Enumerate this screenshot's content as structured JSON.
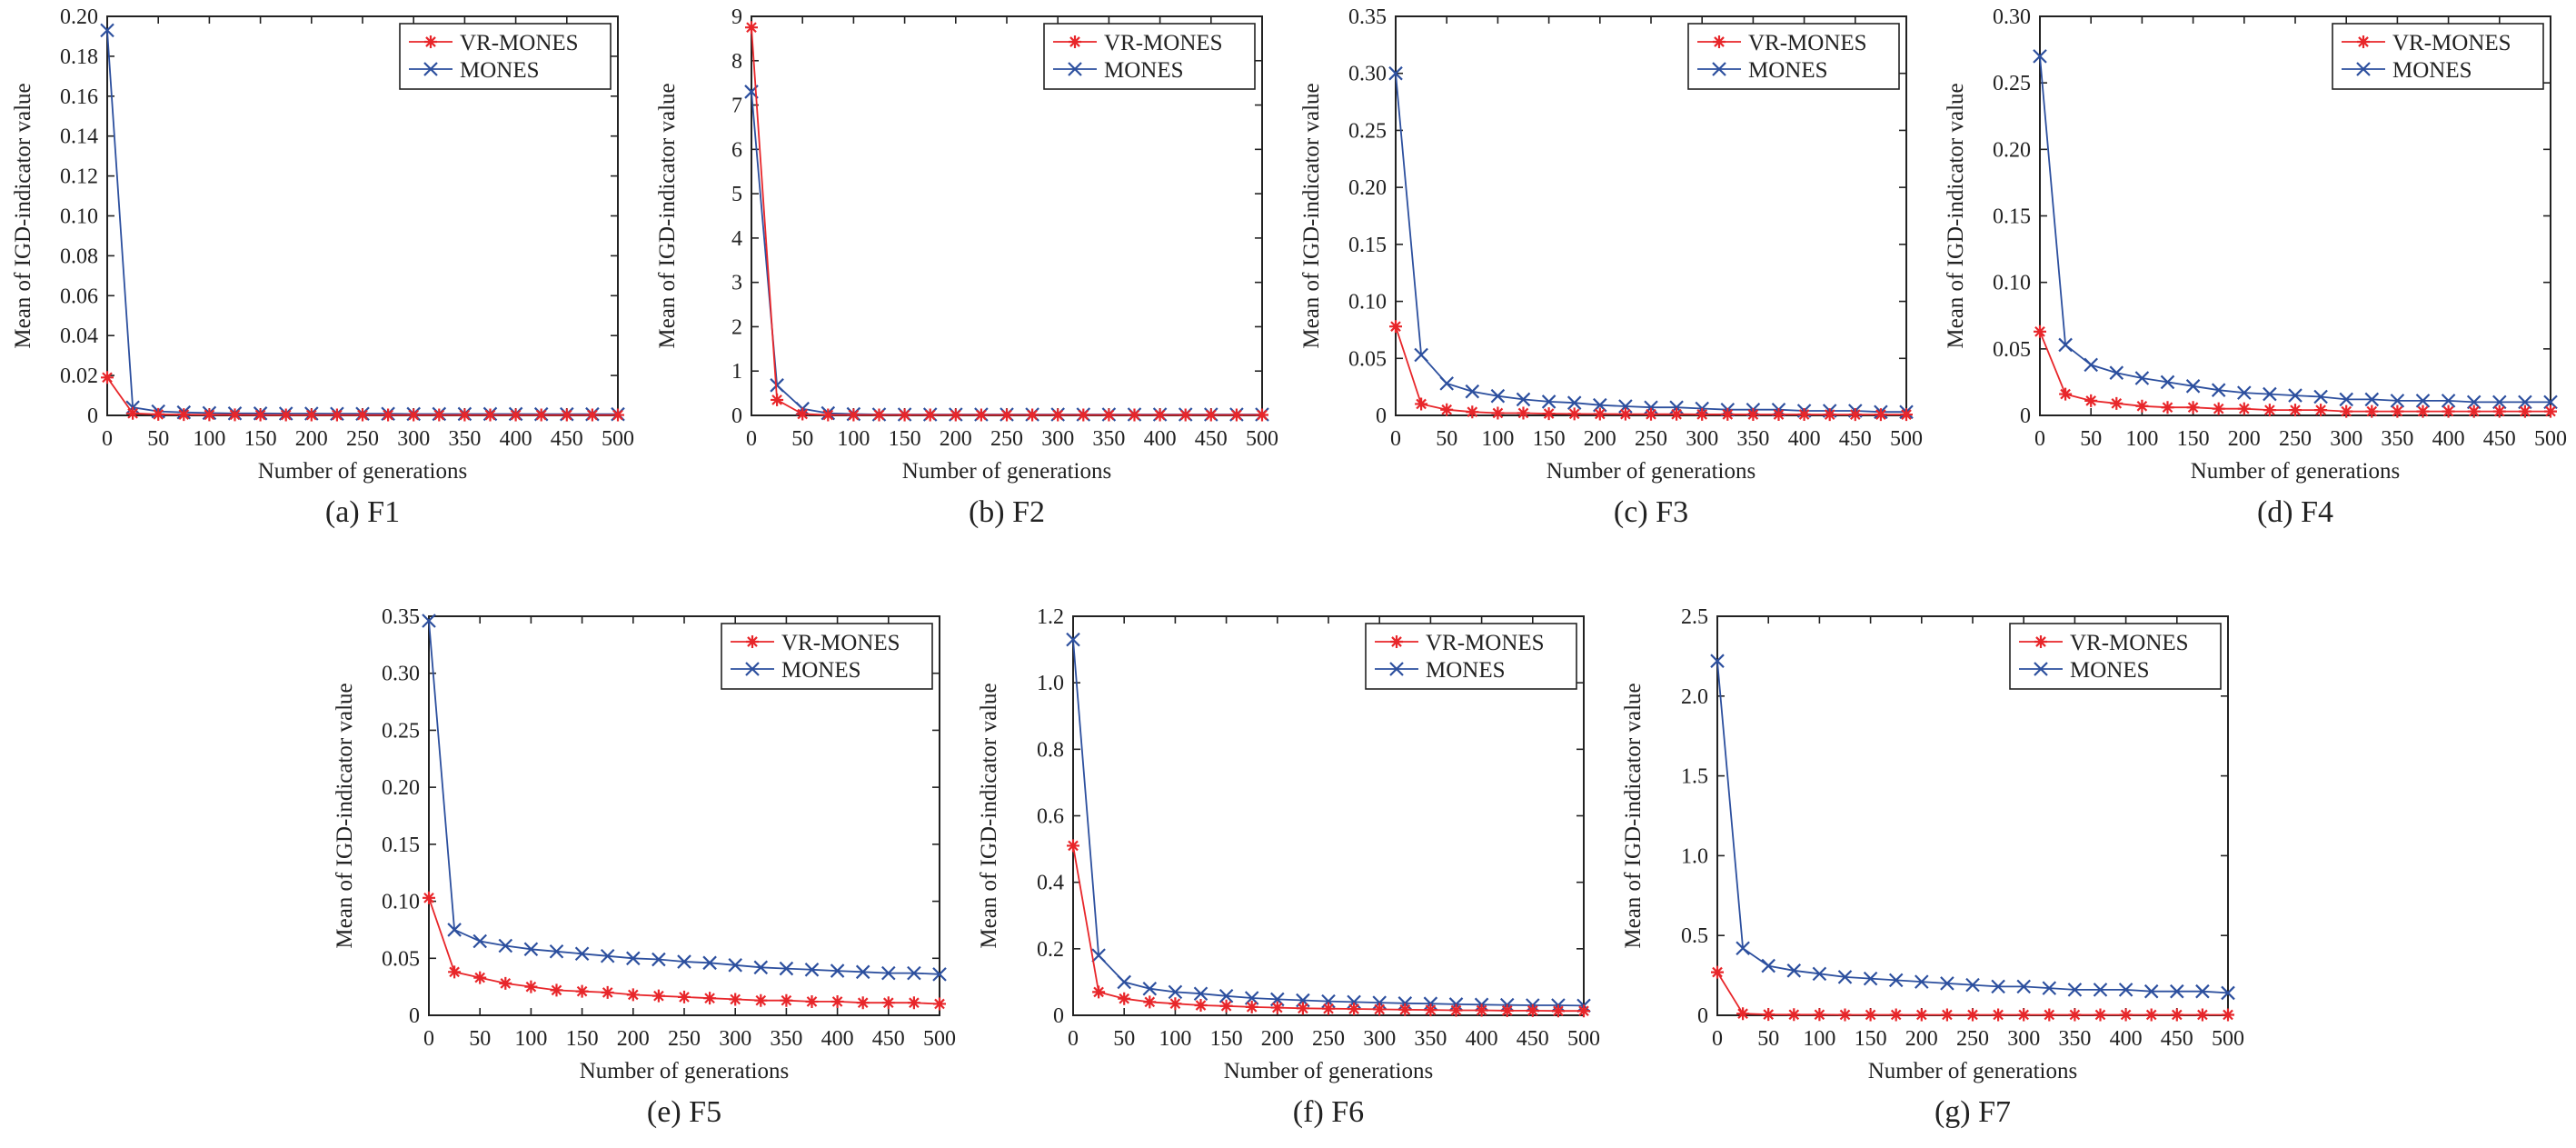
{
  "colors": {
    "vr_mones": "#e8262a",
    "mones": "#2c4f9e",
    "axis": "#222222"
  },
  "chart_data": [
    {
      "type": "line",
      "caption": "(a) F1",
      "xlabel": "Number of generations",
      "ylabel": "Mean of IGD-indicator value",
      "xlim": [
        0,
        500
      ],
      "ylim": [
        0,
        0.2
      ],
      "xticks": [
        0,
        50,
        100,
        150,
        200,
        250,
        300,
        350,
        400,
        450,
        500
      ],
      "yticks": [
        0,
        0.02,
        0.04,
        0.06,
        0.08,
        0.1,
        0.12,
        0.14,
        0.16,
        0.18,
        0.2
      ],
      "ytick_labels": [
        "0",
        "0.02",
        "0.04",
        "0.06",
        "0.08",
        "0.10",
        "0.12",
        "0.14",
        "0.16",
        "0.18",
        "0.20"
      ],
      "legend_position": "top-right",
      "x": [
        0,
        25,
        50,
        75,
        100,
        125,
        150,
        175,
        200,
        225,
        250,
        275,
        300,
        325,
        350,
        375,
        400,
        425,
        450,
        475,
        500
      ],
      "series": [
        {
          "name": "VR-MONES",
          "marker": "star",
          "values": [
            0.019,
            0.001,
            0.0005,
            0.0004,
            0.0003,
            0.0003,
            0.0002,
            0.0002,
            0.0002,
            0.0002,
            0.0002,
            0.0002,
            0.0002,
            0.0002,
            0.0002,
            0.0002,
            0.0002,
            0.0002,
            0.0002,
            0.0002,
            0.0002
          ]
        },
        {
          "name": "MONES",
          "marker": "x",
          "values": [
            0.193,
            0.004,
            0.002,
            0.0015,
            0.0012,
            0.001,
            0.001,
            0.0009,
            0.0009,
            0.0008,
            0.0008,
            0.0008,
            0.0007,
            0.0007,
            0.0007,
            0.0007,
            0.0007,
            0.0006,
            0.0006,
            0.0006,
            0.0006
          ]
        }
      ]
    },
    {
      "type": "line",
      "caption": "(b) F2",
      "xlabel": "Number of generations",
      "ylabel": "Mean of IGD-indicator value",
      "xlim": [
        0,
        500
      ],
      "ylim": [
        0,
        9
      ],
      "xticks": [
        0,
        50,
        100,
        150,
        200,
        250,
        300,
        350,
        400,
        450,
        500
      ],
      "yticks": [
        0,
        1,
        2,
        3,
        4,
        5,
        6,
        7,
        8,
        9
      ],
      "ytick_labels": [
        "0",
        "1",
        "2",
        "3",
        "4",
        "5",
        "6",
        "7",
        "8",
        "9"
      ],
      "legend_position": "top-right",
      "x": [
        0,
        25,
        50,
        75,
        100,
        125,
        150,
        175,
        200,
        225,
        250,
        275,
        300,
        325,
        350,
        375,
        400,
        425,
        450,
        475,
        500
      ],
      "series": [
        {
          "name": "VR-MONES",
          "marker": "star",
          "values": [
            8.75,
            0.35,
            0.03,
            0.01,
            0.01,
            0.01,
            0.01,
            0.01,
            0.01,
            0.01,
            0.01,
            0.01,
            0.01,
            0.01,
            0.01,
            0.01,
            0.01,
            0.01,
            0.01,
            0.01,
            0.01
          ]
        },
        {
          "name": "MONES",
          "marker": "x",
          "values": [
            7.3,
            0.68,
            0.15,
            0.05,
            0.03,
            0.02,
            0.02,
            0.02,
            0.02,
            0.02,
            0.02,
            0.02,
            0.02,
            0.02,
            0.02,
            0.02,
            0.02,
            0.02,
            0.02,
            0.02,
            0.02
          ]
        }
      ]
    },
    {
      "type": "line",
      "caption": "(c) F3",
      "xlabel": "Number of generations",
      "ylabel": "Mean of IGD-indicator value",
      "xlim": [
        0,
        500
      ],
      "ylim": [
        0,
        0.35
      ],
      "xticks": [
        0,
        50,
        100,
        150,
        200,
        250,
        300,
        350,
        400,
        450,
        500
      ],
      "yticks": [
        0,
        0.05,
        0.1,
        0.15,
        0.2,
        0.25,
        0.3,
        0.35
      ],
      "ytick_labels": [
        "0",
        "0.05",
        "0.10",
        "0.15",
        "0.20",
        "0.25",
        "0.30",
        "0.35"
      ],
      "legend_position": "top-right",
      "x": [
        0,
        25,
        50,
        75,
        100,
        125,
        150,
        175,
        200,
        225,
        250,
        275,
        300,
        325,
        350,
        375,
        400,
        425,
        450,
        475,
        500
      ],
      "series": [
        {
          "name": "VR-MONES",
          "marker": "star",
          "values": [
            0.078,
            0.01,
            0.005,
            0.003,
            0.002,
            0.002,
            0.0015,
            0.0013,
            0.0012,
            0.0011,
            0.001,
            0.001,
            0.0009,
            0.0009,
            0.0008,
            0.0008,
            0.0008,
            0.0007,
            0.0007,
            0.0007,
            0.0007
          ]
        },
        {
          "name": "MONES",
          "marker": "x",
          "values": [
            0.3,
            0.053,
            0.028,
            0.021,
            0.017,
            0.014,
            0.012,
            0.011,
            0.009,
            0.008,
            0.007,
            0.007,
            0.006,
            0.005,
            0.005,
            0.005,
            0.004,
            0.004,
            0.004,
            0.003,
            0.003
          ]
        }
      ]
    },
    {
      "type": "line",
      "caption": "(d) F4",
      "xlabel": "Number of generations",
      "ylabel": "Mean of IGD-indicator value",
      "xlim": [
        0,
        500
      ],
      "ylim": [
        0,
        0.3
      ],
      "xticks": [
        0,
        50,
        100,
        150,
        200,
        250,
        300,
        350,
        400,
        450,
        500
      ],
      "yticks": [
        0,
        0.05,
        0.1,
        0.15,
        0.2,
        0.25,
        0.3
      ],
      "ytick_labels": [
        "0",
        "0.05",
        "0.10",
        "0.15",
        "0.20",
        "0.25",
        "0.30"
      ],
      "legend_position": "top-right",
      "x": [
        0,
        25,
        50,
        75,
        100,
        125,
        150,
        175,
        200,
        225,
        250,
        275,
        300,
        325,
        350,
        375,
        400,
        425,
        450,
        475,
        500
      ],
      "series": [
        {
          "name": "VR-MONES",
          "marker": "star",
          "values": [
            0.063,
            0.016,
            0.011,
            0.009,
            0.007,
            0.006,
            0.006,
            0.005,
            0.005,
            0.004,
            0.004,
            0.004,
            0.003,
            0.003,
            0.003,
            0.003,
            0.003,
            0.003,
            0.003,
            0.003,
            0.003
          ]
        },
        {
          "name": "MONES",
          "marker": "x",
          "values": [
            0.27,
            0.053,
            0.038,
            0.032,
            0.028,
            0.025,
            0.022,
            0.019,
            0.017,
            0.016,
            0.015,
            0.014,
            0.012,
            0.012,
            0.011,
            0.011,
            0.011,
            0.01,
            0.01,
            0.01,
            0.01
          ]
        }
      ]
    },
    {
      "type": "line",
      "caption": "(e) F5",
      "xlabel": "Number of generations",
      "ylabel": "Mean of IGD-indicator value",
      "xlim": [
        0,
        500
      ],
      "ylim": [
        0,
        0.35
      ],
      "xticks": [
        0,
        50,
        100,
        150,
        200,
        250,
        300,
        350,
        400,
        450,
        500
      ],
      "yticks": [
        0,
        0.05,
        0.1,
        0.15,
        0.2,
        0.25,
        0.3,
        0.35
      ],
      "ytick_labels": [
        "0",
        "0.05",
        "0.10",
        "0.15",
        "0.20",
        "0.25",
        "0.30",
        "0.35"
      ],
      "legend_position": "top-right",
      "x": [
        0,
        25,
        50,
        75,
        100,
        125,
        150,
        175,
        200,
        225,
        250,
        275,
        300,
        325,
        350,
        375,
        400,
        425,
        450,
        475,
        500
      ],
      "series": [
        {
          "name": "VR-MONES",
          "marker": "star",
          "values": [
            0.103,
            0.038,
            0.033,
            0.028,
            0.025,
            0.022,
            0.021,
            0.02,
            0.018,
            0.017,
            0.016,
            0.015,
            0.014,
            0.013,
            0.013,
            0.012,
            0.012,
            0.011,
            0.011,
            0.011,
            0.01
          ]
        },
        {
          "name": "MONES",
          "marker": "x",
          "values": [
            0.346,
            0.075,
            0.065,
            0.061,
            0.058,
            0.056,
            0.054,
            0.052,
            0.05,
            0.049,
            0.047,
            0.046,
            0.044,
            0.042,
            0.041,
            0.04,
            0.039,
            0.038,
            0.037,
            0.037,
            0.036
          ]
        }
      ]
    },
    {
      "type": "line",
      "caption": "(f) F6",
      "xlabel": "Number of generations",
      "ylabel": "Mean of IGD-indicator value",
      "xlim": [
        0,
        500
      ],
      "ylim": [
        0,
        1.2
      ],
      "xticks": [
        0,
        50,
        100,
        150,
        200,
        250,
        300,
        350,
        400,
        450,
        500
      ],
      "yticks": [
        0,
        0.2,
        0.4,
        0.6,
        0.8,
        1.0,
        1.2
      ],
      "ytick_labels": [
        "0",
        "0.2",
        "0.4",
        "0.6",
        "0.8",
        "1.0",
        "1.2"
      ],
      "legend_position": "top-right",
      "x": [
        0,
        25,
        50,
        75,
        100,
        125,
        150,
        175,
        200,
        225,
        250,
        275,
        300,
        325,
        350,
        375,
        400,
        425,
        450,
        475,
        500
      ],
      "series": [
        {
          "name": "VR-MONES",
          "marker": "star",
          "values": [
            0.51,
            0.07,
            0.05,
            0.04,
            0.035,
            0.03,
            0.028,
            0.025,
            0.023,
            0.021,
            0.02,
            0.019,
            0.018,
            0.017,
            0.016,
            0.015,
            0.015,
            0.014,
            0.014,
            0.013,
            0.013
          ]
        },
        {
          "name": "MONES",
          "marker": "x",
          "values": [
            1.13,
            0.18,
            0.1,
            0.08,
            0.07,
            0.065,
            0.058,
            0.052,
            0.048,
            0.045,
            0.042,
            0.04,
            0.038,
            0.036,
            0.035,
            0.033,
            0.032,
            0.031,
            0.03,
            0.03,
            0.029
          ]
        }
      ]
    },
    {
      "type": "line",
      "caption": "(g) F7",
      "xlabel": "Number of generations",
      "ylabel": "Mean of IGD-indicator value",
      "xlim": [
        0,
        500
      ],
      "ylim": [
        0,
        2.5
      ],
      "xticks": [
        0,
        50,
        100,
        150,
        200,
        250,
        300,
        350,
        400,
        450,
        500
      ],
      "yticks": [
        0,
        0.5,
        1.0,
        1.5,
        2.0,
        2.5
      ],
      "ytick_labels": [
        "0",
        "0.5",
        "1.0",
        "1.5",
        "2.0",
        "2.5"
      ],
      "legend_position": "top-right",
      "x": [
        0,
        25,
        50,
        75,
        100,
        125,
        150,
        175,
        200,
        225,
        250,
        275,
        300,
        325,
        350,
        375,
        400,
        425,
        450,
        475,
        500
      ],
      "series": [
        {
          "name": "VR-MONES",
          "marker": "star",
          "values": [
            0.27,
            0.01,
            0.005,
            0.004,
            0.004,
            0.003,
            0.003,
            0.003,
            0.003,
            0.003,
            0.003,
            0.003,
            0.003,
            0.003,
            0.003,
            0.003,
            0.003,
            0.003,
            0.003,
            0.003,
            0.003
          ]
        },
        {
          "name": "MONES",
          "marker": "x",
          "values": [
            2.22,
            0.42,
            0.31,
            0.28,
            0.26,
            0.24,
            0.23,
            0.22,
            0.21,
            0.2,
            0.19,
            0.18,
            0.18,
            0.17,
            0.16,
            0.16,
            0.16,
            0.15,
            0.15,
            0.15,
            0.14
          ]
        }
      ]
    }
  ]
}
